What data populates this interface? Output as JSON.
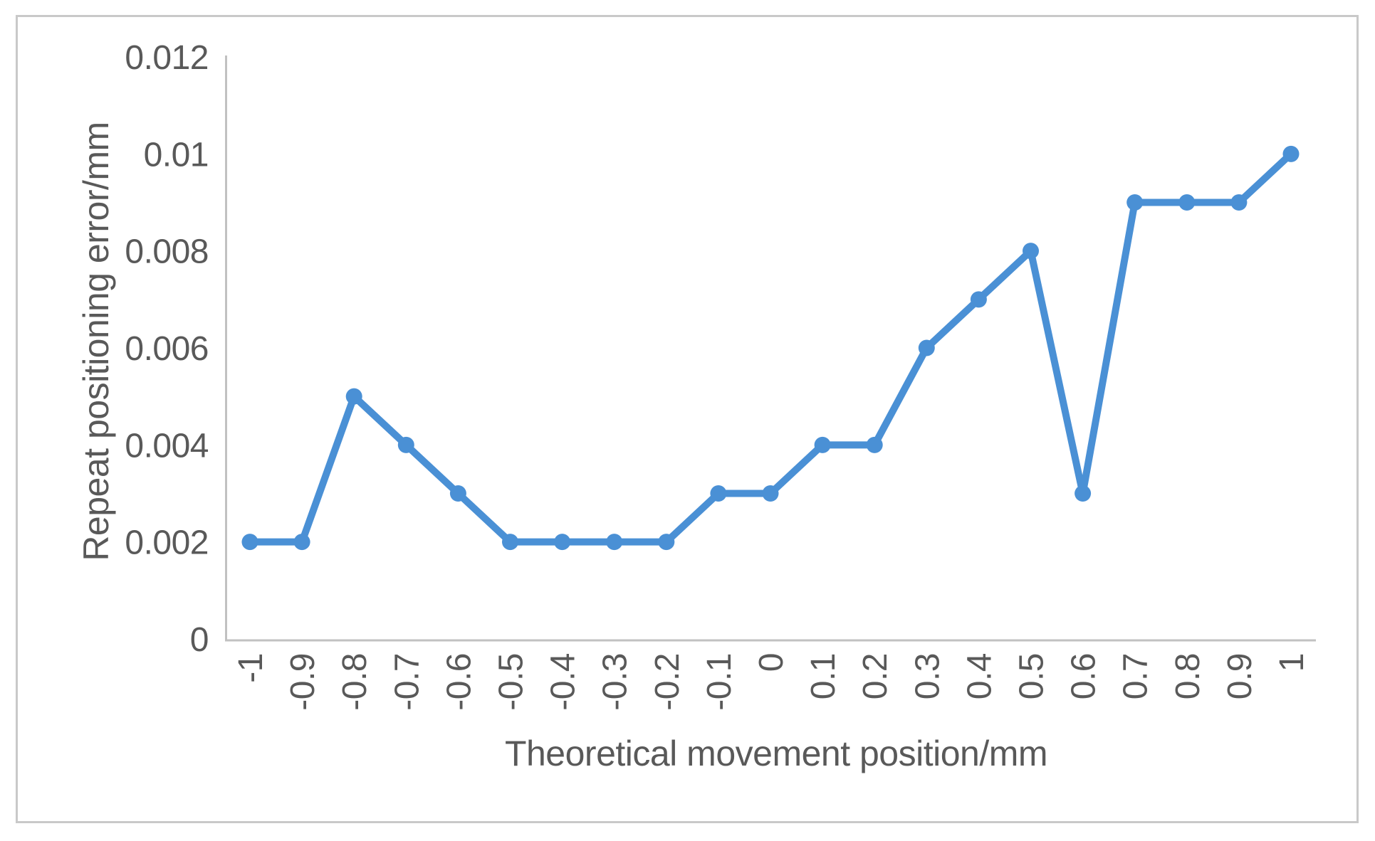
{
  "chart_data": {
    "type": "line",
    "title": "",
    "xlabel": "Theoretical movement position/mm",
    "ylabel": "Repeat positioning error/mm",
    "x": [
      -1,
      -0.9,
      -0.8,
      -0.7,
      -0.6,
      -0.5,
      -0.4,
      -0.3,
      -0.2,
      -0.1,
      0,
      0.1,
      0.2,
      0.3,
      0.4,
      0.5,
      0.6,
      0.7,
      0.8,
      0.9,
      1
    ],
    "y": [
      0.002,
      0.002,
      0.005,
      0.004,
      0.003,
      0.002,
      0.002,
      0.002,
      0.002,
      0.003,
      0.003,
      0.004,
      0.004,
      0.006,
      0.007,
      0.008,
      0.003,
      0.009,
      0.009,
      0.009,
      0.01
    ],
    "x_tick_labels": [
      "-1",
      "-0.9",
      "-0.8",
      "-0.7",
      "-0.6",
      "-0.5",
      "-0.4",
      "-0.3",
      "-0.2",
      "-0.1",
      "0",
      "0.1",
      "0.2",
      "0.3",
      "0.4",
      "0.5",
      "0.6",
      "0.7",
      "0.8",
      "0.9",
      "1"
    ],
    "y_ticks": [
      0,
      0.002,
      0.004,
      0.006,
      0.008,
      0.01,
      0.012
    ],
    "y_tick_labels": [
      "0",
      "0.002",
      "0.004",
      "0.006",
      "0.008",
      "0.01",
      "0.012"
    ],
    "xlim": [
      -1,
      1
    ],
    "ylim": [
      0,
      0.012
    ],
    "grid": "off",
    "legend": "none",
    "marker": "circle",
    "series_color": "#4a90d5",
    "axis_color": "#c1c1c1",
    "text_color": "#595959",
    "frame_color": "#c9c9c9",
    "background_color": "#ffffff"
  }
}
